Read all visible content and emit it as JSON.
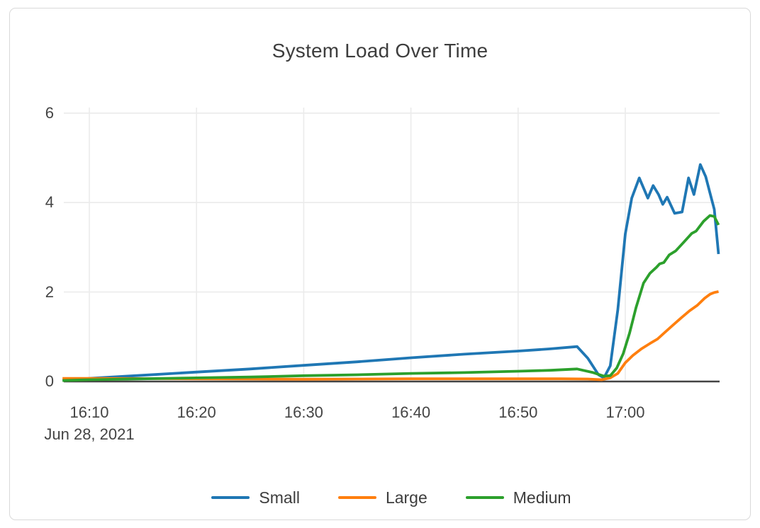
{
  "chart_data": {
    "type": "line",
    "title": "System Load Over Time",
    "grid": true,
    "legend_position": "bottom-center",
    "x_axis": {
      "date_label": "Jun 28, 2021",
      "tick_unit": "time-of-day",
      "ticks": [
        {
          "t": 10,
          "label": "16:10"
        },
        {
          "t": 20,
          "label": "16:20"
        },
        {
          "t": 30,
          "label": "16:30"
        },
        {
          "t": 40,
          "label": "16:40"
        },
        {
          "t": 50,
          "label": "16:50"
        },
        {
          "t": 60,
          "label": "17:00"
        }
      ],
      "range_minutes_after_1600": [
        7.5,
        68.7
      ]
    },
    "y_axis": {
      "ticks": [
        {
          "v": 0,
          "label": "0"
        },
        {
          "v": 2,
          "label": "2"
        },
        {
          "v": 4,
          "label": "4"
        },
        {
          "v": 6,
          "label": "6"
        }
      ],
      "range": [
        0,
        6.12
      ]
    },
    "series": [
      {
        "name": "Small",
        "color": "#1f77b4",
        "points": [
          [
            7.5,
            0.03
          ],
          [
            10,
            0.07
          ],
          [
            15,
            0.14
          ],
          [
            20,
            0.21
          ],
          [
            25,
            0.28
          ],
          [
            30,
            0.36
          ],
          [
            35,
            0.44
          ],
          [
            40,
            0.53
          ],
          [
            45,
            0.61
          ],
          [
            50,
            0.68
          ],
          [
            53,
            0.73
          ],
          [
            55.5,
            0.78
          ],
          [
            56.5,
            0.52
          ],
          [
            57.5,
            0.15
          ],
          [
            58,
            0.08
          ],
          [
            58.6,
            0.35
          ],
          [
            59.3,
            1.6
          ],
          [
            60,
            3.3
          ],
          [
            60.6,
            4.1
          ],
          [
            61.3,
            4.55
          ],
          [
            62.1,
            4.1
          ],
          [
            62.6,
            4.38
          ],
          [
            63.1,
            4.18
          ],
          [
            63.5,
            3.96
          ],
          [
            63.9,
            4.12
          ],
          [
            64.6,
            3.76
          ],
          [
            65.3,
            3.79
          ],
          [
            65.9,
            4.55
          ],
          [
            66.4,
            4.18
          ],
          [
            67,
            4.85
          ],
          [
            67.5,
            4.58
          ],
          [
            68,
            4.12
          ],
          [
            68.3,
            3.85
          ],
          [
            68.7,
            2.85
          ]
        ]
      },
      {
        "name": "Large",
        "color": "#ff7f0e",
        "points": [
          [
            7.5,
            0.07
          ],
          [
            10,
            0.07
          ],
          [
            15,
            0.065
          ],
          [
            20,
            0.06
          ],
          [
            25,
            0.055
          ],
          [
            30,
            0.05
          ],
          [
            35,
            0.055
          ],
          [
            40,
            0.06
          ],
          [
            45,
            0.06
          ],
          [
            50,
            0.06
          ],
          [
            54,
            0.06
          ],
          [
            56.5,
            0.055
          ],
          [
            57.8,
            0.04
          ],
          [
            58.6,
            0.08
          ],
          [
            59.3,
            0.18
          ],
          [
            60,
            0.42
          ],
          [
            60.7,
            0.58
          ],
          [
            61.5,
            0.73
          ],
          [
            62.3,
            0.85
          ],
          [
            63,
            0.95
          ],
          [
            63.7,
            1.1
          ],
          [
            64.4,
            1.25
          ],
          [
            65.2,
            1.42
          ],
          [
            66,
            1.58
          ],
          [
            66.7,
            1.7
          ],
          [
            67.4,
            1.86
          ],
          [
            67.9,
            1.95
          ],
          [
            68.3,
            1.99
          ],
          [
            68.7,
            2.01
          ]
        ]
      },
      {
        "name": "Medium",
        "color": "#2ca02c",
        "points": [
          [
            7.5,
            0.02
          ],
          [
            10,
            0.04
          ],
          [
            15,
            0.06
          ],
          [
            20,
            0.08
          ],
          [
            25,
            0.1
          ],
          [
            30,
            0.13
          ],
          [
            35,
            0.15
          ],
          [
            40,
            0.18
          ],
          [
            45,
            0.2
          ],
          [
            50,
            0.23
          ],
          [
            53,
            0.25
          ],
          [
            55.5,
            0.28
          ],
          [
            57,
            0.2
          ],
          [
            58,
            0.12
          ],
          [
            58.6,
            0.13
          ],
          [
            59.2,
            0.3
          ],
          [
            59.8,
            0.62
          ],
          [
            60.4,
            1.08
          ],
          [
            61,
            1.65
          ],
          [
            61.7,
            2.2
          ],
          [
            62.3,
            2.42
          ],
          [
            62.9,
            2.55
          ],
          [
            63.2,
            2.63
          ],
          [
            63.6,
            2.66
          ],
          [
            64.1,
            2.83
          ],
          [
            64.7,
            2.92
          ],
          [
            65.4,
            3.1
          ],
          [
            66.2,
            3.31
          ],
          [
            66.6,
            3.36
          ],
          [
            67.3,
            3.58
          ],
          [
            67.9,
            3.71
          ],
          [
            68.3,
            3.69
          ],
          [
            68.7,
            3.5
          ]
        ]
      }
    ],
    "colors": {
      "gridline": "#ebebeb",
      "zero_line": "#444444",
      "text": "#444444",
      "frame_border": "#d9d9d9",
      "background": "#ffffff"
    }
  }
}
